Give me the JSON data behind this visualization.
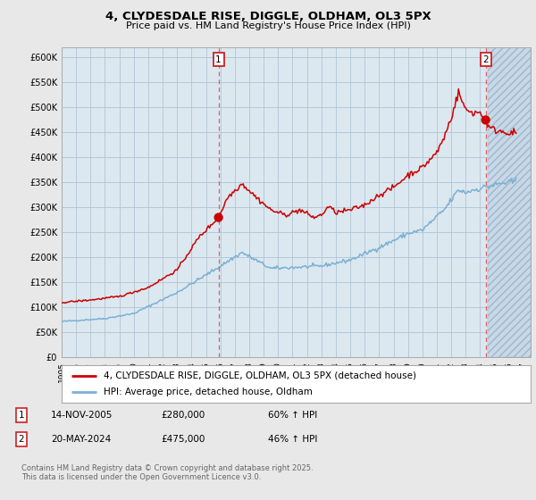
{
  "title1": "4, CLYDESDALE RISE, DIGGLE, OLDHAM, OL3 5PX",
  "title2": "Price paid vs. HM Land Registry's House Price Index (HPI)",
  "ylim": [
    0,
    620000
  ],
  "yticks": [
    0,
    50000,
    100000,
    150000,
    200000,
    250000,
    300000,
    350000,
    400000,
    450000,
    500000,
    550000,
    600000
  ],
  "ytick_labels": [
    "£0",
    "£50K",
    "£100K",
    "£150K",
    "£200K",
    "£250K",
    "£300K",
    "£350K",
    "£400K",
    "£450K",
    "£500K",
    "£550K",
    "£600K"
  ],
  "xlim_start": 1995.0,
  "xlim_end": 2027.5,
  "bg_color": "#e8e8e8",
  "plot_bg_color": "#dce8f0",
  "grid_color": "#b0c4d4",
  "red_line_color": "#cc0000",
  "blue_line_color": "#7ab0d4",
  "marker1_x": 2005.87,
  "marker1_y": 280000,
  "marker1_label": "1",
  "marker2_x": 2024.38,
  "marker2_y": 475000,
  "marker2_label": "2",
  "hatch_start": 2024.5,
  "legend_line1": "4, CLYDESDALE RISE, DIGGLE, OLDHAM, OL3 5PX (detached house)",
  "legend_line2": "HPI: Average price, detached house, Oldham",
  "note1_label": "1",
  "note1_date": "14-NOV-2005",
  "note1_price": "£280,000",
  "note1_hpi": "60% ↑ HPI",
  "note2_label": "2",
  "note2_date": "20-MAY-2024",
  "note2_price": "£475,000",
  "note2_hpi": "46% ↑ HPI",
  "footer": "Contains HM Land Registry data © Crown copyright and database right 2025.\nThis data is licensed under the Open Government Licence v3.0."
}
